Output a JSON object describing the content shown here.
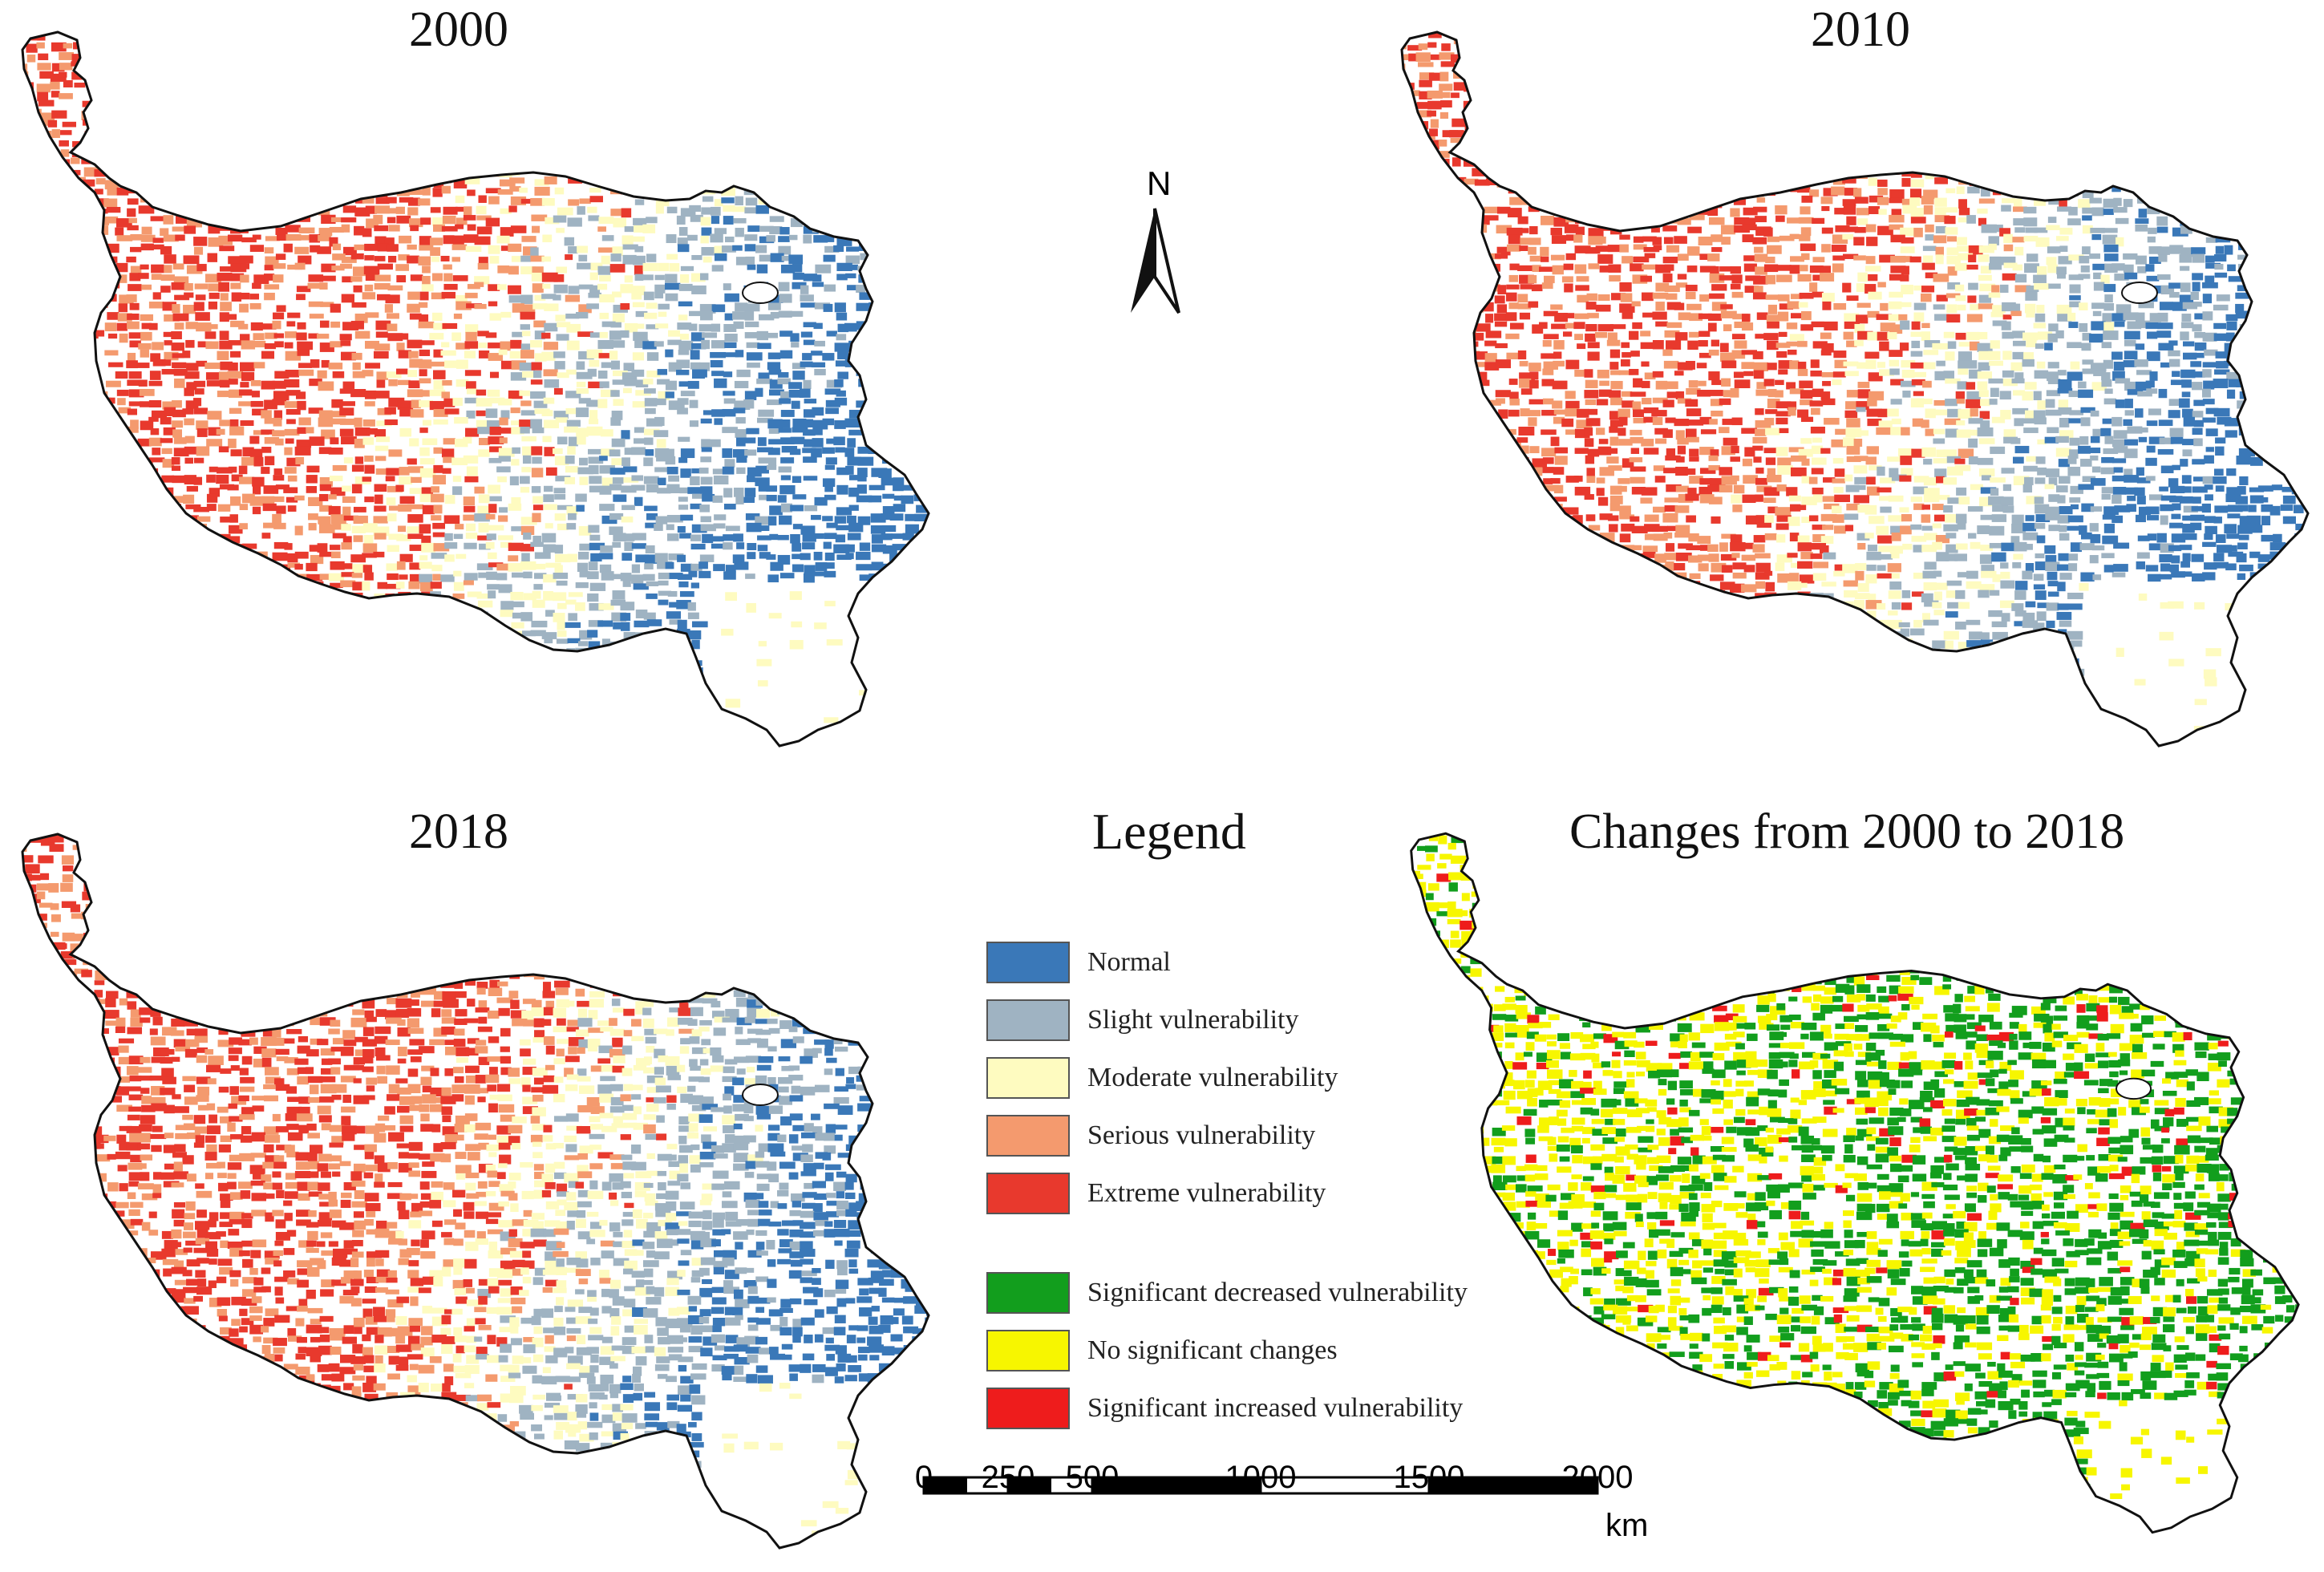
{
  "panels": [
    {
      "title": "2000",
      "scheme": "vuln2000"
    },
    {
      "title": "2010",
      "scheme": "vuln2010"
    },
    {
      "title": "2018",
      "scheme": "vuln2018"
    },
    {
      "title": "Changes from 2000 to 2018",
      "scheme": "change"
    }
  ],
  "north_arrow": {
    "label": "N"
  },
  "legend": {
    "title": "Legend",
    "items": [
      {
        "label": "Normal",
        "color": "#3a78b8"
      },
      {
        "label": "Slight vulnerability",
        "color": "#9fb3c2"
      },
      {
        "label": "Moderate vulnerability",
        "color": "#fefbc0"
      },
      {
        "label": "Serious vulnerability",
        "color": "#f49a6e"
      },
      {
        "label": "Extreme vulnerability",
        "color": "#e8392d"
      },
      {
        "label": "Significant decreased vulnerability",
        "color": "#129e1d"
      },
      {
        "label": "No significant changes",
        "color": "#f7f600"
      },
      {
        "label": "Significant increased vulnerability",
        "color": "#ee1c1c"
      }
    ]
  },
  "scale_bar": {
    "ticks": [
      "0",
      "250",
      "500",
      "1000",
      "1500",
      "2000"
    ],
    "tick_values": [
      0,
      250,
      500,
      1000,
      1500,
      2000
    ],
    "unit": "km"
  }
}
